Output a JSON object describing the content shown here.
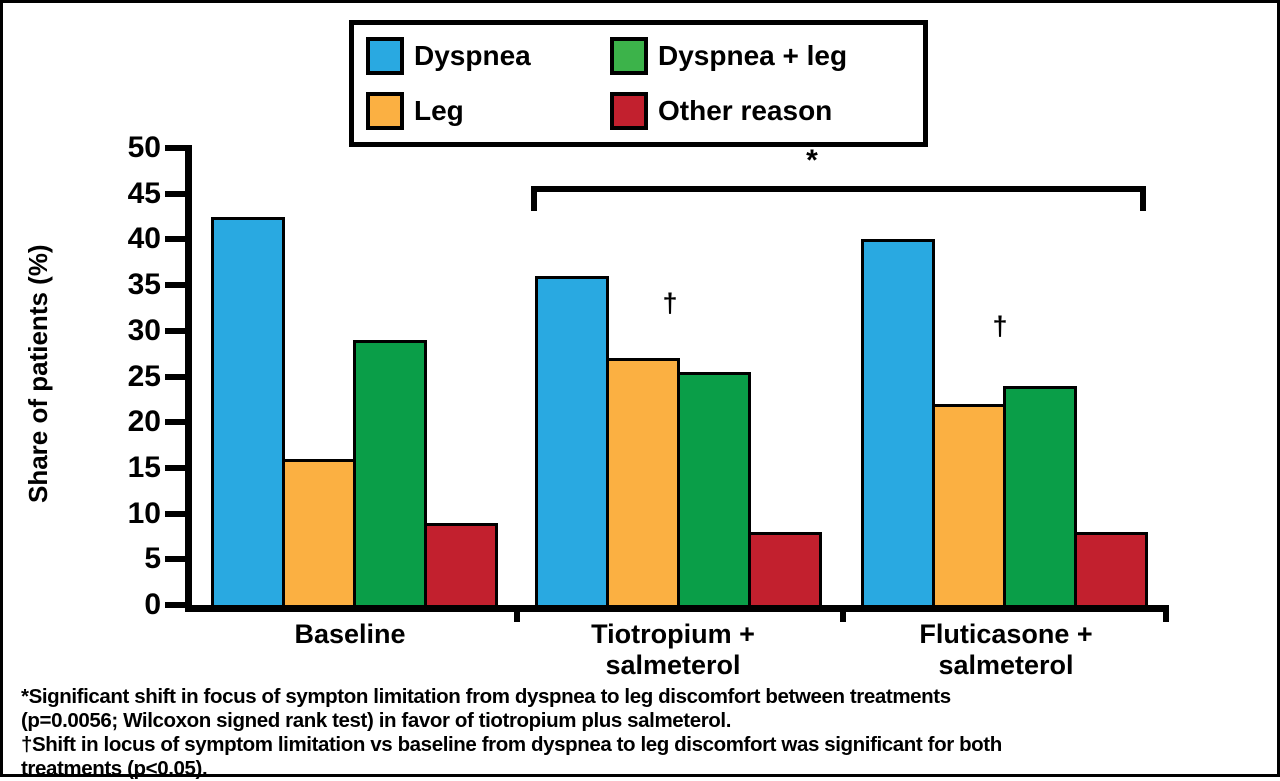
{
  "chart_data": {
    "type": "bar",
    "title": "",
    "xlabel": "",
    "ylabel": "Share of patients (%)",
    "ylim": [
      0,
      50
    ],
    "ytick_step": 5,
    "grid": false,
    "legend_position": "top",
    "categories": [
      "Baseline",
      "Tiotropium +\nsalmeterol",
      "Fluticasone +\nsalmeterol"
    ],
    "series": [
      {
        "name": "Dyspnea",
        "color": "#29A9E1",
        "legend_color": "#29A9E1",
        "values": [
          42.5,
          36,
          40
        ]
      },
      {
        "name": "Leg",
        "color": "#FBB042",
        "legend_color": "#FBB042",
        "values": [
          16,
          27,
          22
        ]
      },
      {
        "name": "Dyspnea + leg",
        "color": "#0A9E48",
        "legend_color": "#3CB34A",
        "values": [
          29,
          25.5,
          24
        ]
      },
      {
        "name": "Other reason",
        "color": "#C2202E",
        "legend_color": "#C2202E",
        "values": [
          9,
          8,
          8
        ]
      }
    ],
    "annotations": {
      "bracket": {
        "label": "*",
        "from_group": 1,
        "to_group": 2
      },
      "daggers": [
        {
          "group": 1,
          "above_series": "Leg",
          "label": "†"
        },
        {
          "group": 2,
          "above_series": "Leg",
          "label": "†"
        }
      ]
    }
  },
  "footnote": {
    "lines": [
      "*Significant shift in focus of sympton limitation from dyspnea to leg discomfort between treatments",
      "(p=0.0056; Wilcoxon signed rank test) in favor of tiotropium plus salmeterol.",
      "†Shift in locus of symptom limitation vs baseline from dyspnea to leg discomfort was significant for both",
      "treatments (p<0.05)."
    ]
  }
}
